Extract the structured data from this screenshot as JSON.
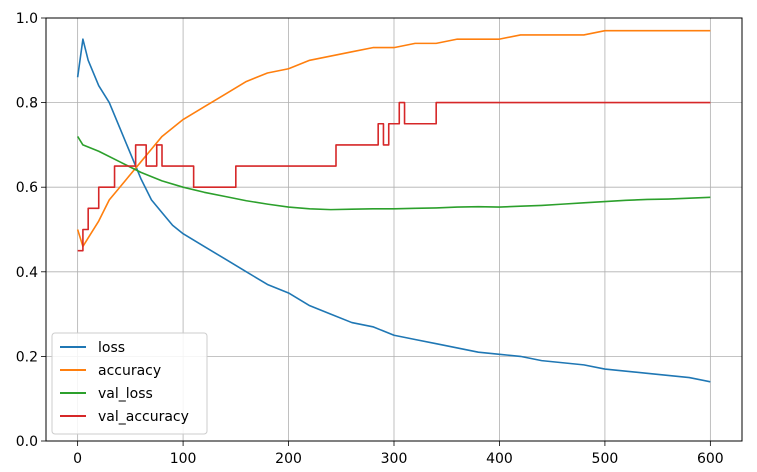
{
  "chart_data": {
    "type": "line",
    "title": "",
    "xlabel": "",
    "ylabel": "",
    "xlim": [
      -30,
      630
    ],
    "ylim": [
      0.0,
      1.0
    ],
    "xticks": [
      0,
      100,
      200,
      300,
      400,
      500,
      600
    ],
    "yticks": [
      0.0,
      0.2,
      0.4,
      0.6,
      0.8,
      1.0
    ],
    "xtick_labels": [
      "0",
      "100",
      "200",
      "300",
      "400",
      "500",
      "600"
    ],
    "ytick_labels": [
      "0.0",
      "0.2",
      "0.4",
      "0.6",
      "0.8",
      "1.0"
    ],
    "grid": true,
    "legend_position": "lower-left",
    "series": [
      {
        "name": "loss",
        "color": "#1f77b4",
        "x": [
          0,
          5,
          10,
          20,
          30,
          40,
          50,
          60,
          70,
          80,
          90,
          100,
          120,
          140,
          160,
          180,
          200,
          220,
          240,
          260,
          280,
          300,
          320,
          340,
          360,
          380,
          400,
          420,
          440,
          460,
          480,
          500,
          520,
          540,
          560,
          580,
          600
        ],
        "values": [
          0.86,
          0.95,
          0.9,
          0.84,
          0.8,
          0.74,
          0.68,
          0.62,
          0.57,
          0.54,
          0.51,
          0.49,
          0.46,
          0.43,
          0.4,
          0.37,
          0.35,
          0.32,
          0.3,
          0.28,
          0.27,
          0.25,
          0.24,
          0.23,
          0.22,
          0.21,
          0.205,
          0.2,
          0.19,
          0.185,
          0.18,
          0.17,
          0.165,
          0.16,
          0.155,
          0.15,
          0.14
        ]
      },
      {
        "name": "accuracy",
        "color": "#ff7f0e",
        "x": [
          0,
          5,
          10,
          20,
          30,
          40,
          50,
          60,
          70,
          80,
          90,
          100,
          120,
          140,
          160,
          180,
          200,
          220,
          240,
          260,
          280,
          300,
          320,
          340,
          360,
          380,
          400,
          420,
          440,
          460,
          480,
          500,
          520,
          540,
          560,
          580,
          600
        ],
        "values": [
          0.5,
          0.46,
          0.48,
          0.52,
          0.57,
          0.6,
          0.63,
          0.66,
          0.69,
          0.72,
          0.74,
          0.76,
          0.79,
          0.82,
          0.85,
          0.87,
          0.88,
          0.9,
          0.91,
          0.92,
          0.93,
          0.93,
          0.94,
          0.94,
          0.95,
          0.95,
          0.95,
          0.96,
          0.96,
          0.96,
          0.96,
          0.97,
          0.97,
          0.97,
          0.97,
          0.97,
          0.97
        ]
      },
      {
        "name": "val_loss",
        "color": "#2ca02c",
        "x": [
          0,
          5,
          20,
          40,
          60,
          80,
          100,
          120,
          140,
          160,
          180,
          200,
          220,
          240,
          260,
          280,
          300,
          320,
          340,
          360,
          380,
          400,
          420,
          440,
          460,
          480,
          500,
          520,
          540,
          560,
          580,
          600
        ],
        "values": [
          0.72,
          0.7,
          0.685,
          0.66,
          0.635,
          0.615,
          0.6,
          0.588,
          0.578,
          0.568,
          0.56,
          0.553,
          0.549,
          0.547,
          0.548,
          0.549,
          0.549,
          0.55,
          0.551,
          0.553,
          0.554,
          0.553,
          0.555,
          0.557,
          0.56,
          0.563,
          0.566,
          0.569,
          0.571,
          0.572,
          0.574,
          0.576
        ]
      },
      {
        "name": "val_accuracy",
        "color": "#d62728",
        "x": [
          0,
          5,
          5,
          10,
          10,
          20,
          20,
          35,
          35,
          55,
          55,
          65,
          65,
          75,
          75,
          80,
          80,
          110,
          110,
          150,
          150,
          230,
          230,
          245,
          245,
          285,
          285,
          290,
          290,
          295,
          295,
          305,
          305,
          310,
          310,
          340,
          340,
          600
        ],
        "values": [
          0.45,
          0.45,
          0.5,
          0.5,
          0.55,
          0.55,
          0.6,
          0.6,
          0.65,
          0.65,
          0.7,
          0.7,
          0.65,
          0.65,
          0.7,
          0.7,
          0.65,
          0.65,
          0.6,
          0.6,
          0.65,
          0.65,
          0.65,
          0.65,
          0.7,
          0.7,
          0.75,
          0.75,
          0.7,
          0.7,
          0.75,
          0.75,
          0.8,
          0.8,
          0.75,
          0.75,
          0.8,
          0.8
        ]
      }
    ]
  }
}
